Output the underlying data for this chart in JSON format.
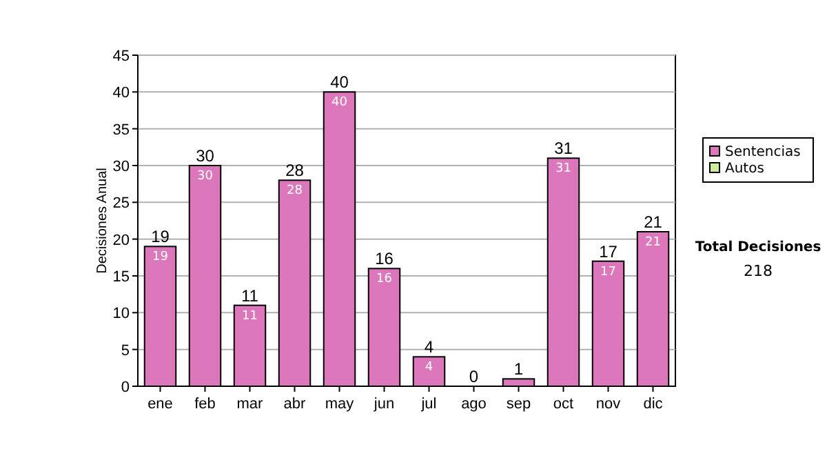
{
  "chart_data": {
    "type": "bar",
    "stacked": true,
    "ylabel": "Decisiones Anual",
    "categories": [
      "ene",
      "feb",
      "mar",
      "abr",
      "may",
      "jun",
      "jul",
      "ago",
      "sep",
      "oct",
      "nov",
      "dic"
    ],
    "series": [
      {
        "name": "Sentencias",
        "color": "#dd77bb",
        "values": [
          19,
          30,
          11,
          28,
          40,
          16,
          4,
          0,
          1,
          31,
          17,
          21
        ],
        "value_labels": [
          "19",
          "30",
          "11",
          "28",
          "40",
          "16",
          "4",
          null,
          null,
          "31",
          "17",
          "21"
        ]
      },
      {
        "name": "Autos",
        "color": "#ccee99",
        "values": [
          0,
          0,
          0,
          0,
          0,
          0,
          0,
          0,
          0,
          0,
          0,
          0
        ]
      }
    ],
    "totals": [
      "19",
      "30",
      "11",
      "28",
      "40",
      "16",
      "4",
      "0",
      "1",
      "31",
      "17",
      "21"
    ],
    "ylim": [
      0,
      45
    ],
    "yticks": [
      0,
      5,
      10,
      15,
      20,
      25,
      30,
      35,
      40,
      45
    ],
    "grid": "y",
    "legend": "right",
    "annotations": [
      "Total Decisiones",
      "218"
    ]
  }
}
